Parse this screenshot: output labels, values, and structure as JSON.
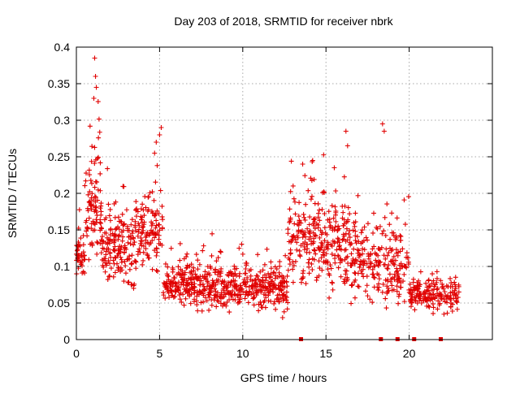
{
  "chart_data": {
    "type": "scatter",
    "title": "Day 203 of 2018, SRMTID for receiver nbrk",
    "xlabel": "GPS time / hours",
    "ylabel": "SRMTID / TECUs",
    "xlim": [
      0,
      25
    ],
    "ylim": [
      0,
      0.4
    ],
    "x_ticks": [
      0,
      5,
      10,
      15,
      20
    ],
    "x_tick_labels": [
      "0",
      "5",
      "10",
      "15",
      "20"
    ],
    "y_ticks": [
      0,
      0.05,
      0.1,
      0.15,
      0.2,
      0.25,
      0.3,
      0.35,
      0.4
    ],
    "y_tick_labels": [
      "0",
      "0.05",
      "0.1",
      "0.15",
      "0.2",
      "0.25",
      "0.3",
      "0.35",
      "0.4"
    ],
    "grid": true,
    "marker": "+",
    "series_color": "#e00000",
    "outliers": {
      "x": [
        1.1,
        1.15,
        1.2,
        1.05,
        4.7,
        4.8,
        5.0,
        5.1,
        16.2,
        16.3,
        18.4,
        18.5,
        15.5,
        13.6,
        14.2
      ],
      "y": [
        0.385,
        0.36,
        0.345,
        0.33,
        0.255,
        0.27,
        0.28,
        0.29,
        0.285,
        0.265,
        0.295,
        0.285,
        0.235,
        0.24,
        0.245
      ]
    },
    "segments": [
      {
        "x0": 0.0,
        "x1": 0.5,
        "center": 0.11,
        "spread": 0.03,
        "count": 40
      },
      {
        "x0": 0.5,
        "x1": 1.5,
        "center": 0.18,
        "spread": 0.06,
        "count": 90
      },
      {
        "x0": 1.5,
        "x1": 2.5,
        "center": 0.13,
        "spread": 0.04,
        "count": 80
      },
      {
        "x0": 2.5,
        "x1": 3.5,
        "center": 0.12,
        "spread": 0.045,
        "count": 80
      },
      {
        "x0": 3.5,
        "x1": 5.2,
        "center": 0.15,
        "spread": 0.045,
        "count": 120
      },
      {
        "x0": 5.2,
        "x1": 7.5,
        "center": 0.075,
        "spread": 0.025,
        "count": 170
      },
      {
        "x0": 7.5,
        "x1": 10.5,
        "center": 0.075,
        "spread": 0.028,
        "count": 210
      },
      {
        "x0": 10.5,
        "x1": 12.7,
        "center": 0.07,
        "spread": 0.028,
        "count": 160
      },
      {
        "x0": 12.7,
        "x1": 14.5,
        "center": 0.14,
        "spread": 0.055,
        "count": 130
      },
      {
        "x0": 14.5,
        "x1": 16.5,
        "center": 0.13,
        "spread": 0.055,
        "count": 150
      },
      {
        "x0": 16.5,
        "x1": 18.3,
        "center": 0.11,
        "spread": 0.045,
        "count": 120
      },
      {
        "x0": 18.3,
        "x1": 20.0,
        "center": 0.1,
        "spread": 0.05,
        "count": 110
      },
      {
        "x0": 20.0,
        "x1": 23.0,
        "center": 0.06,
        "spread": 0.018,
        "count": 180
      }
    ],
    "zero_points": [
      13.5,
      18.3,
      19.3,
      20.3,
      21.9
    ]
  }
}
